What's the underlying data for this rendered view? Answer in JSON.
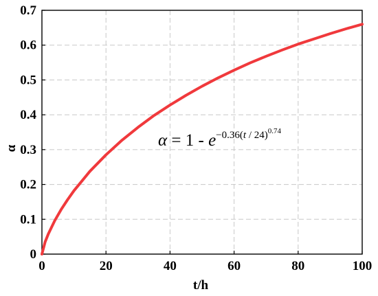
{
  "chart_data": {
    "type": "line",
    "xlabel": "t/h",
    "ylabel": "α",
    "xlim": [
      0,
      100
    ],
    "ylim": [
      0,
      0.7
    ],
    "xticks": [
      0,
      20,
      40,
      60,
      80,
      100
    ],
    "yticks": [
      0,
      0.1,
      0.2,
      0.3,
      0.4,
      0.5,
      0.6,
      0.7
    ],
    "xtick_labels": [
      "0",
      "20",
      "40",
      "60",
      "80",
      "100"
    ],
    "ytick_labels": [
      "0",
      "0.1",
      "0.2",
      "0.3",
      "0.4",
      "0.5",
      "0.6",
      "0.7"
    ],
    "grid": true,
    "legend": "none",
    "annotation": {
      "alpha": "α",
      "equals_one": " = 1 - ",
      "base": "e",
      "exponent_main": "−0.36(",
      "exponent_var": "t",
      "exponent_rest": " / 24)",
      "exponent_power": "0.74"
    },
    "series": [
      {
        "color": "#f0393c",
        "x": [
          0,
          1,
          2,
          4,
          6,
          8,
          10,
          15,
          20,
          25,
          30,
          35,
          40,
          45,
          50,
          55,
          60,
          65,
          70,
          75,
          80,
          85,
          90,
          95,
          100
        ],
        "y": [
          0,
          0.035,
          0.058,
          0.096,
          0.128,
          0.156,
          0.182,
          0.238,
          0.285,
          0.327,
          0.364,
          0.398,
          0.428,
          0.456,
          0.482,
          0.506,
          0.528,
          0.549,
          0.568,
          0.586,
          0.603,
          0.618,
          0.633,
          0.647,
          0.66
        ]
      }
    ]
  }
}
